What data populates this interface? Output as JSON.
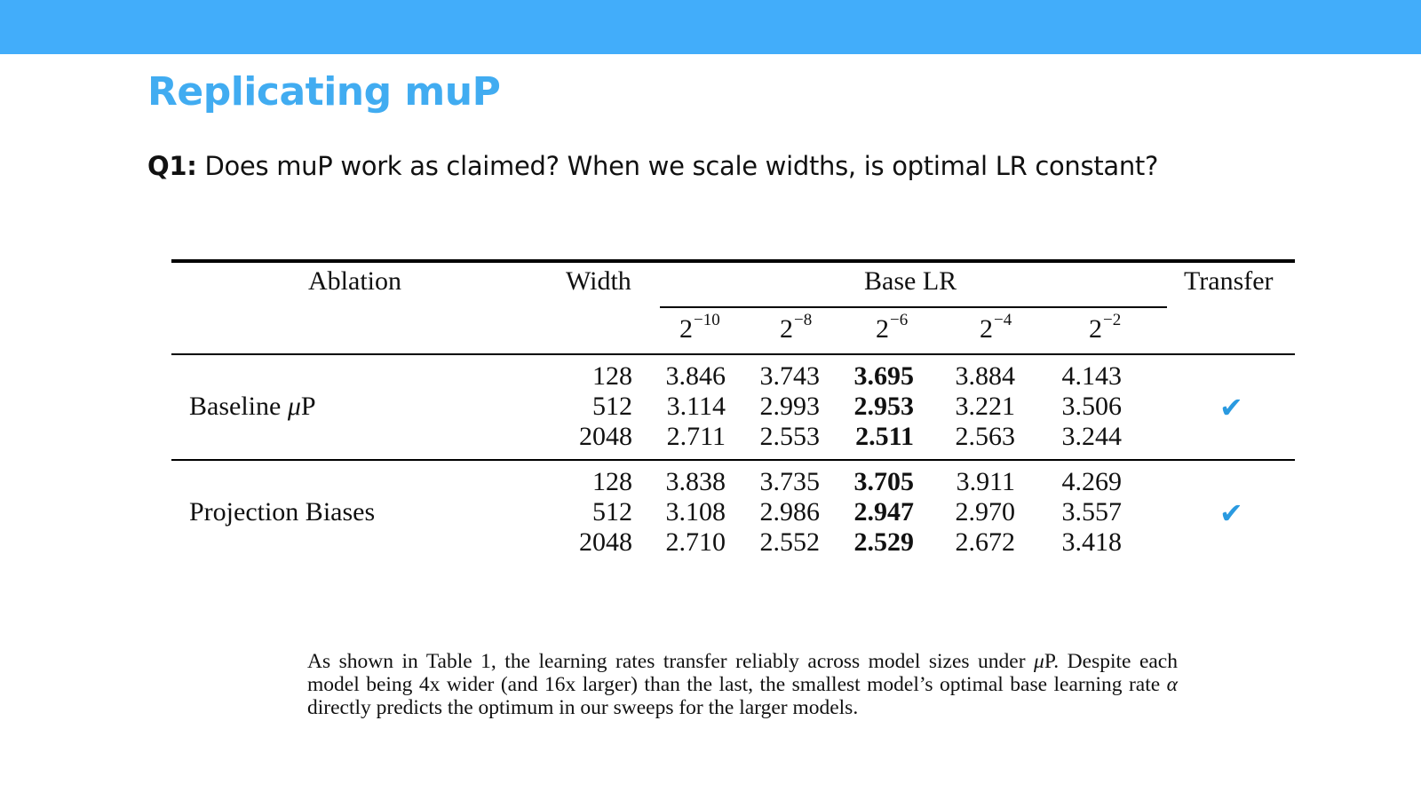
{
  "slide": {
    "title": "Replicating muP",
    "question_prefix": "Q1:",
    "question_text": " Does muP work as claimed? When we scale widths, is optimal LR constant?",
    "accent_color": "#42adfa"
  },
  "table": {
    "header": {
      "ablation": "Ablation",
      "width": "Width",
      "base_lr": "Base LR",
      "transfer": "Transfer",
      "lr_base": "2",
      "lr_exponents": [
        "−10",
        "−8",
        "−6",
        "−4",
        "−2"
      ]
    },
    "groups": [
      {
        "name_prefix": "Baseline ",
        "name_mu": "μ",
        "name_suffix": "P",
        "transfer_icon": "check-icon",
        "transfer_glyph": "✔",
        "rows": [
          {
            "width": "128",
            "values": [
              "3.846",
              "3.743",
              "3.695",
              "3.884",
              "4.143"
            ]
          },
          {
            "width": "512",
            "values": [
              "3.114",
              "2.993",
              "2.953",
              "3.221",
              "3.506"
            ]
          },
          {
            "width": "2048",
            "values": [
              "2.711",
              "2.553",
              "2.511",
              "2.563",
              "3.244"
            ]
          }
        ]
      },
      {
        "name_prefix": "Projection Biases",
        "name_mu": "",
        "name_suffix": "",
        "transfer_icon": "check-icon",
        "transfer_glyph": "✔",
        "rows": [
          {
            "width": "128",
            "values": [
              "3.838",
              "3.735",
              "3.705",
              "3.911",
              "4.269"
            ]
          },
          {
            "width": "512",
            "values": [
              "3.108",
              "2.986",
              "2.947",
              "2.970",
              "3.557"
            ]
          },
          {
            "width": "2048",
            "values": [
              "2.710",
              "2.552",
              "2.529",
              "2.672",
              "3.418"
            ]
          }
        ]
      }
    ],
    "bold_column_index": 2
  },
  "caption": {
    "part1": "As shown in Table 1, the learning rates transfer reliably across model sizes under ",
    "mu": "μ",
    "part2": "P. Despite each model being 4x wider (and 16x larger) than the last, the smallest model’s optimal base learning rate ",
    "alpha": "α",
    "part3": " directly predicts the optimum in our sweeps for the larger models."
  }
}
